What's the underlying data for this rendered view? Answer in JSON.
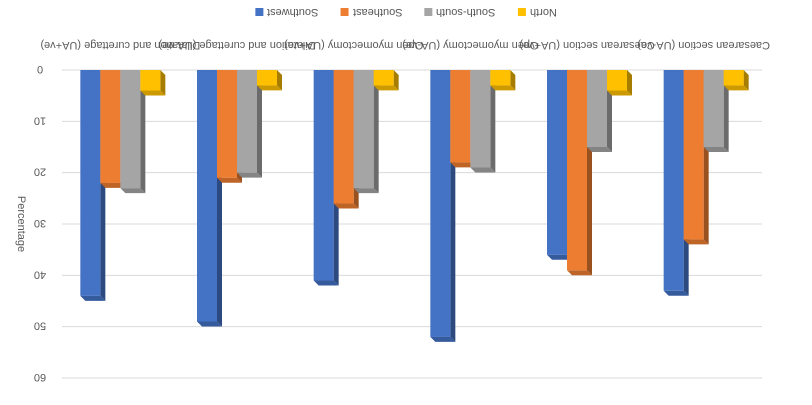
{
  "chart_data": {
    "type": "bar",
    "ylabel": "Percentage",
    "ylim": [
      0,
      60
    ],
    "yticks": [
      "0",
      "10",
      "20",
      "30",
      "40",
      "50",
      "60"
    ],
    "categories": [
      "Dilatation and curettage (UA+ve)",
      "Dilatation and curettage (UA-ve)",
      "Open myomectomy (UA+ve)",
      "Open myomectomy (UA-ve)",
      "Caesarean section (UA+ve)",
      "Caesarean section (UA-ve)"
    ],
    "series": [
      {
        "name": "Southwest",
        "color": "#4472C4",
        "values": [
          44,
          49,
          41,
          52,
          36,
          43
        ]
      },
      {
        "name": "Southeast",
        "color": "#ED7D31",
        "values": [
          22,
          21,
          26,
          18,
          39,
          33
        ]
      },
      {
        "name": "South-south",
        "color": "#A5A5A5",
        "values": [
          23,
          20,
          23,
          19,
          15,
          15
        ]
      },
      {
        "name": "North",
        "color": "#FFC000",
        "values": [
          4,
          3,
          3,
          3,
          4,
          3
        ]
      }
    ],
    "grid": true,
    "legend_position": "top"
  }
}
